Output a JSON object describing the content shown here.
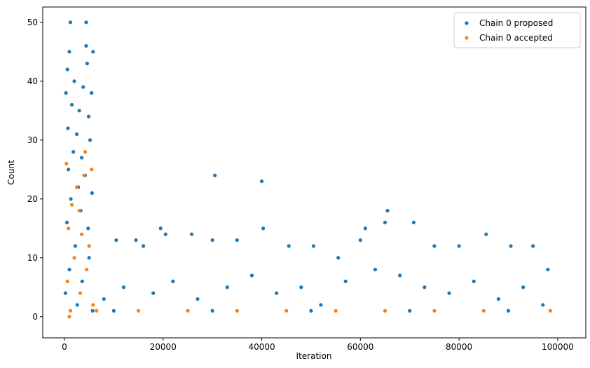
{
  "chart_data": {
    "type": "scatter",
    "x_label": "Iteration",
    "y_label": "Count",
    "xlim": [
      -4400,
      105700
    ],
    "ylim": [
      -3.6,
      52.6
    ],
    "xticks": [
      0,
      20000,
      40000,
      60000,
      80000,
      100000
    ],
    "yticks": [
      0,
      10,
      20,
      30,
      40,
      50
    ],
    "legend": "upper right",
    "series": [
      {
        "name": "Chain 0 proposed",
        "color": "#1f77b4",
        "x": [
          1200,
          4400,
          4400,
          1000,
          5800,
          600,
          4600,
          2000,
          3800,
          5500,
          300,
          1500,
          3000,
          4900,
          700,
          2500,
          5200,
          1800,
          3500,
          800,
          4200,
          2800,
          5600,
          1300,
          3300,
          500,
          4800,
          2200,
          5000,
          1000,
          3600,
          200,
          2600,
          5700,
          10500,
          14500,
          16000,
          19500,
          20500,
          25800,
          30000,
          30500,
          35000,
          40000,
          40300,
          45500,
          50500,
          55500,
          60000,
          61000,
          65500,
          65000,
          70800,
          75000,
          80000,
          85500,
          90500,
          95000,
          98000,
          8000,
          12000,
          18000,
          22000,
          27000,
          33000,
          38000,
          43000,
          48000,
          52000,
          57000,
          63000,
          68000,
          73000,
          78000,
          83000,
          88000,
          93000,
          97000,
          10000,
          30000,
          50000,
          70000,
          90000
        ],
        "values": [
          50,
          50,
          46,
          45,
          45,
          42,
          43,
          40,
          39,
          38,
          38,
          36,
          35,
          34,
          32,
          31,
          30,
          28,
          27,
          25,
          24,
          22,
          21,
          20,
          18,
          16,
          15,
          12,
          10,
          8,
          6,
          4,
          2,
          1,
          13,
          13,
          12,
          15,
          14,
          14,
          13,
          24,
          13,
          23,
          15,
          12,
          12,
          10,
          13,
          15,
          18,
          16,
          16,
          12,
          12,
          14,
          12,
          12,
          8,
          3,
          5,
          4,
          6,
          3,
          5,
          7,
          4,
          5,
          2,
          6,
          8,
          7,
          5,
          4,
          6,
          3,
          5,
          2,
          1,
          1,
          1,
          1,
          1
        ]
      },
      {
        "name": "Chain 0 accepted",
        "color": "#ff7f0e",
        "x": [
          400,
          4200,
          1000,
          2500,
          4000,
          5500,
          1500,
          3000,
          800,
          3500,
          5000,
          2000,
          4500,
          600,
          3200,
          5800,
          1200,
          6500,
          15000,
          25000,
          35000,
          45000,
          55000,
          65000,
          75000,
          85000,
          98500
        ],
        "values": [
          26,
          28,
          0,
          22,
          24,
          25,
          19,
          18,
          15,
          14,
          12,
          10,
          8,
          6,
          4,
          2,
          1,
          1,
          1,
          1,
          1,
          1,
          1,
          1,
          1,
          1,
          1
        ]
      }
    ]
  }
}
